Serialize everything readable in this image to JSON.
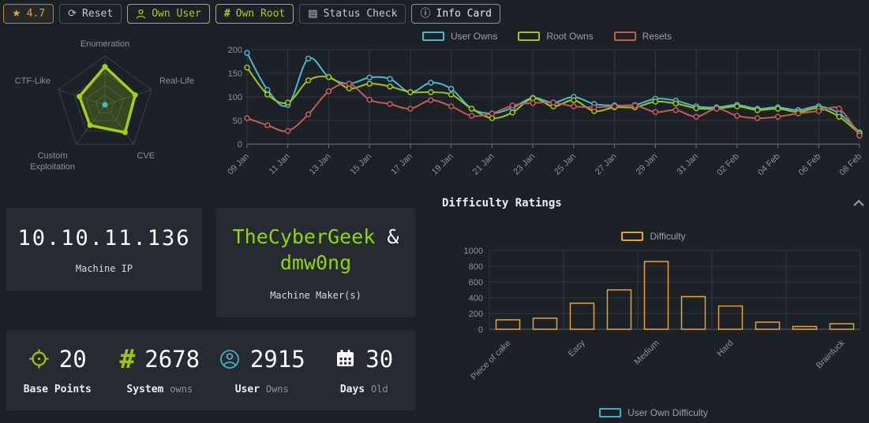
{
  "toolbar": {
    "rating": "4.7",
    "reset_label": "Reset",
    "own_user_label": "Own User",
    "own_root_label": "Own Root",
    "status_check_label": "Status Check",
    "info_card_label": "Info Card"
  },
  "colors": {
    "page_bg": "#1c2127",
    "card_bg": "#262b31",
    "accent_green": "#9fc313",
    "maker_green": "#96d40a",
    "accent_orange": "#e6a23c",
    "teal": "#46aec6",
    "red": "#c65b56",
    "grid": "#32373e",
    "text_dim": "#8b9299"
  },
  "cards": {
    "machine_ip": {
      "value": "10.10.11.136",
      "label": "Machine IP"
    },
    "makers": {
      "name1": "TheCyberGeek",
      "separator": "&",
      "name2": "dmw0ng",
      "label": "Machine Maker(s)"
    }
  },
  "stats": [
    {
      "icon": "crosshair-icon",
      "value": "20",
      "label": "Base Points",
      "label2": ""
    },
    {
      "icon": "hash-icon",
      "value": "2678",
      "label": "System",
      "label2": "owns"
    },
    {
      "icon": "user-circle-icon",
      "value": "2915",
      "label": "User",
      "label2": "Owns"
    },
    {
      "icon": "calendar-icon",
      "value": "30",
      "label": "Days",
      "label2": "Old"
    }
  ],
  "difficulty_section": {
    "title": "Difficulty Ratings",
    "bottom_legend_label": "User Own Difficulty",
    "bottom_legend_color": "#46aec6"
  },
  "chart_data": [
    {
      "type": "radar",
      "axes": [
        "Enumeration",
        "Real-Life",
        "CVE",
        "Custom Exploitation",
        "CTF-Like"
      ],
      "max": 10,
      "series": [
        {
          "name": "",
          "values": [
            7.8,
            6.5,
            7.0,
            5.2,
            5.5
          ],
          "color": "#a6ce13"
        }
      ],
      "center_dot_color": "#4ab8c4",
      "rings": [
        1,
        0.66,
        0.4,
        0.2
      ]
    },
    {
      "type": "line",
      "x": [
        "09 Jan",
        "10 Jan",
        "11 Jan",
        "12 Jan",
        "13 Jan",
        "14 Jan",
        "15 Jan",
        "16 Jan",
        "17 Jan",
        "18 Jan",
        "19 Jan",
        "20 Jan",
        "21 Jan",
        "22 Jan",
        "23 Jan",
        "24 Jan",
        "25 Jan",
        "26 Jan",
        "27 Jan",
        "28 Jan",
        "29 Jan",
        "30 Jan",
        "31 Jan",
        "01 Feb",
        "02 Feb",
        "03 Feb",
        "04 Feb",
        "05 Feb",
        "06 Feb",
        "07 Feb",
        "08 Feb"
      ],
      "tick_every": 2,
      "ylim": [
        0,
        200
      ],
      "yticks": [
        0,
        50,
        100,
        150,
        200
      ],
      "series": [
        {
          "name": "User Owns",
          "color": "#4ab8d0",
          "values": [
            193,
            115,
            83,
            181,
            142,
            128,
            141,
            138,
            110,
            130,
            117,
            75,
            65,
            77,
            98,
            88,
            100,
            85,
            82,
            83,
            96,
            92,
            80,
            78,
            83,
            75,
            78,
            72,
            80,
            65,
            25
          ]
        },
        {
          "name": "Root Owns",
          "color": "#a2c513",
          "values": [
            162,
            105,
            88,
            135,
            142,
            118,
            128,
            122,
            110,
            110,
            105,
            75,
            55,
            67,
            97,
            80,
            93,
            70,
            78,
            78,
            90,
            86,
            76,
            75,
            80,
            72,
            75,
            68,
            76,
            58,
            22
          ]
        },
        {
          "name": "Resets",
          "color": "#c65b56",
          "values": [
            55,
            40,
            28,
            63,
            112,
            128,
            94,
            85,
            75,
            93,
            80,
            60,
            65,
            82,
            87,
            88,
            80,
            78,
            80,
            82,
            68,
            72,
            58,
            75,
            60,
            55,
            58,
            65,
            70,
            75,
            18
          ]
        }
      ]
    },
    {
      "type": "bar",
      "title": "Difficulty Ratings",
      "legend_label": "Difficulty",
      "color": "#e6a23c",
      "categories": [
        "Piece of cake",
        "",
        "Easy",
        "",
        "Medium",
        "",
        "Hard",
        "",
        "",
        "Brainfuck"
      ],
      "values": [
        120,
        140,
        330,
        500,
        860,
        415,
        295,
        90,
        35,
        70
      ],
      "ylim": [
        0,
        1000
      ],
      "yticks": [
        0,
        200,
        400,
        600,
        800,
        1000
      ]
    }
  ]
}
